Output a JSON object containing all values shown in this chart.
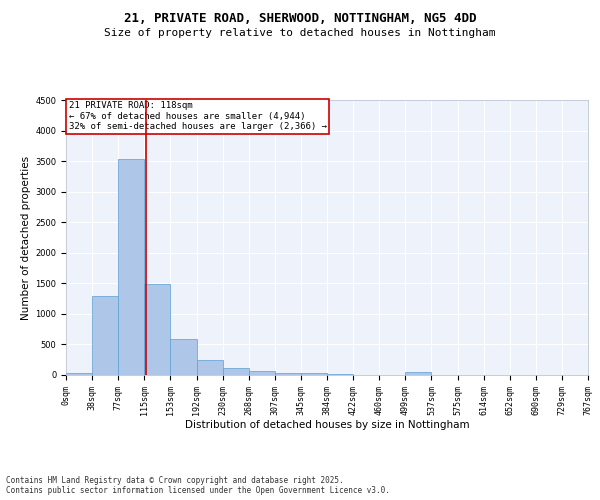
{
  "title1": "21, PRIVATE ROAD, SHERWOOD, NOTTINGHAM, NG5 4DD",
  "title2": "Size of property relative to detached houses in Nottingham",
  "xlabel": "Distribution of detached houses by size in Nottingham",
  "ylabel": "Number of detached properties",
  "bar_values": [
    30,
    1290,
    3540,
    1490,
    590,
    245,
    115,
    70,
    35,
    25,
    10,
    0,
    0,
    45,
    0,
    0,
    0,
    0,
    0,
    0
  ],
  "bin_labels": [
    "0sqm",
    "38sqm",
    "77sqm",
    "115sqm",
    "153sqm",
    "192sqm",
    "230sqm",
    "268sqm",
    "307sqm",
    "345sqm",
    "384sqm",
    "422sqm",
    "460sqm",
    "499sqm",
    "537sqm",
    "575sqm",
    "614sqm",
    "652sqm",
    "690sqm",
    "729sqm",
    "767sqm"
  ],
  "bar_color": "#aec6e8",
  "bar_edge_color": "#5a9fd4",
  "vline_color": "#cc0000",
  "annotation_text": "21 PRIVATE ROAD: 118sqm\n← 67% of detached houses are smaller (4,944)\n32% of semi-detached houses are larger (2,366) →",
  "annotation_box_color": "#cc0000",
  "ylim": [
    0,
    4500
  ],
  "yticks": [
    0,
    500,
    1000,
    1500,
    2000,
    2500,
    3000,
    3500,
    4000,
    4500
  ],
  "background_color": "#eef2fb",
  "grid_color": "#ffffff",
  "footer_text": "Contains HM Land Registry data © Crown copyright and database right 2025.\nContains public sector information licensed under the Open Government Licence v3.0.",
  "title_fontsize": 9,
  "subtitle_fontsize": 8,
  "annot_fontsize": 6.5,
  "axis_label_fontsize": 7.5,
  "tick_fontsize": 6,
  "footer_fontsize": 5.5
}
